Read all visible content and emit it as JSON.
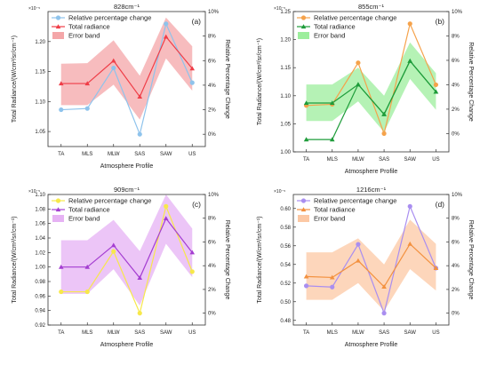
{
  "chart_data": [
    {
      "type": "line",
      "title": "828cm⁻¹",
      "panel_label": "(a)",
      "categories": [
        "TA",
        "MLS",
        "MLW",
        "SAS",
        "SAW",
        "US"
      ],
      "xlabel": "Atmosphere Profile",
      "ylabel": "Total Radiance/(W/cm²/sr/cm⁻¹)",
      "ylabel_right": "Relative Percentage Change",
      "y_exponent_label": "×10⁻⁵",
      "ylim": [
        1.025,
        1.25
      ],
      "yticks": [
        1.05,
        1.1,
        1.15,
        1.2
      ],
      "ytick_labels": [
        "1.05",
        "1.10",
        "1.15",
        "1.20"
      ],
      "y2lim": [
        -1,
        10
      ],
      "y2ticks": [
        0,
        2,
        4,
        6,
        8,
        10
      ],
      "y2tick_labels": [
        "0%",
        "2%",
        "4%",
        "6%",
        "8%",
        "10%"
      ],
      "colors": {
        "relative": "#8ec3ec",
        "total": "#ef3d47",
        "band": "#f4a6a8"
      },
      "series": [
        {
          "name": "Relative percentage change",
          "axis": "right",
          "values": [
            2.0,
            2.1,
            5.4,
            0.0,
            9.0,
            4.2
          ]
        },
        {
          "name": "Total radiance",
          "axis": "left",
          "values": [
            1.13,
            1.13,
            1.168,
            1.108,
            1.208,
            1.155
          ]
        }
      ],
      "band": {
        "name": "Error band",
        "lower": [
          1.094,
          1.094,
          1.128,
          1.07,
          1.172,
          1.118
        ],
        "upper": [
          1.163,
          1.164,
          1.202,
          1.143,
          1.24,
          1.192
        ]
      },
      "legend_position": "top-left",
      "grid": false
    },
    {
      "type": "line",
      "title": "855cm⁻¹",
      "panel_label": "(b)",
      "categories": [
        "TA",
        "MLS",
        "MLW",
        "SAS",
        "SAW",
        "US"
      ],
      "xlabel": "Atmosphere Profile",
      "ylabel": "Total Radiance/(W/cm²/sr/cm⁻¹)",
      "ylabel_right": "Relative Percentage Change",
      "y_exponent_label": "×10⁻⁵",
      "ylim": [
        1.0,
        1.25
      ],
      "yticks": [
        1.0,
        1.05,
        1.1,
        1.15,
        1.2,
        1.25
      ],
      "ytick_labels": [
        "1.00",
        "1.05",
        "1.10",
        "1.15",
        "1.20",
        "1.25"
      ],
      "y2lim": [
        -1.5,
        10
      ],
      "y2ticks": [
        0,
        2,
        4,
        6,
        8,
        10
      ],
      "y2tick_labels": [
        "0%",
        "2%",
        "4%",
        "6%",
        "8%",
        "10%"
      ],
      "colors": {
        "relative": "#f5a24b",
        "total": "#1e9c3a",
        "band": "#9cee9c"
      },
      "series": [
        {
          "name": "Relative percentage change",
          "axis": "right",
          "values": [
            2.3,
            2.4,
            5.8,
            0.0,
            9.0,
            4.0
          ]
        },
        {
          "name": "Total radiance",
          "axis": "left",
          "values": [
            1.087,
            1.087,
            1.12,
            1.067,
            1.162,
            1.107
          ]
        },
        {
          "name": "",
          "axis": "left",
          "values": [
            1.022,
            1.022,
            1.12,
            1.067,
            1.162,
            1.107
          ]
        }
      ],
      "band": {
        "name": "Error band",
        "lower": [
          1.055,
          1.055,
          1.09,
          1.035,
          1.13,
          1.075
        ],
        "upper": [
          1.12,
          1.12,
          1.15,
          1.1,
          1.195,
          1.14
        ]
      },
      "legend_position": "top-left",
      "grid": false
    },
    {
      "type": "line",
      "title": "909cm⁻¹",
      "panel_label": "(c)",
      "categories": [
        "TA",
        "MLS",
        "MLW",
        "SAS",
        "SAW",
        "US"
      ],
      "xlabel": "Atmosphere Profile",
      "ylabel": "Total Radiance/(W/cm²/sr/cm⁻¹)",
      "ylabel_right": "Relative Percentage Change",
      "y_exponent_label": "×10⁻⁵",
      "ylim": [
        0.92,
        1.1
      ],
      "yticks": [
        0.92,
        0.94,
        0.96,
        0.98,
        1.0,
        1.02,
        1.04,
        1.06,
        1.08,
        1.1
      ],
      "ytick_labels": [
        "0.92",
        "0.94",
        "0.96",
        "0.98",
        "1.00",
        "1.02",
        "1.04",
        "1.06",
        "1.08",
        "1.10"
      ],
      "y2lim": [
        -1,
        10
      ],
      "y2ticks": [
        0,
        2,
        4,
        6,
        8,
        10
      ],
      "y2tick_labels": [
        "0%",
        "2%",
        "4%",
        "6%",
        "8%",
        "10%"
      ],
      "colors": {
        "relative": "#f7e84a",
        "total": "#a43ed1",
        "band": "#e6b2f4"
      },
      "series": [
        {
          "name": "Relative percentage change",
          "axis": "right",
          "values": [
            1.8,
            1.8,
            5.2,
            0.0,
            9.0,
            3.5
          ]
        },
        {
          "name": "Total radiance",
          "axis": "left",
          "values": [
            1.0,
            1.0,
            1.03,
            0.985,
            1.067,
            1.02
          ]
        }
      ],
      "band": {
        "name": "Error band",
        "lower": [
          0.963,
          0.963,
          0.997,
          0.947,
          1.032,
          0.986
        ],
        "upper": [
          1.037,
          1.037,
          1.065,
          1.022,
          1.1,
          1.053
        ]
      },
      "legend_position": "top-left",
      "grid": false
    },
    {
      "type": "line",
      "title": "1216cm⁻¹",
      "panel_label": "(d)",
      "categories": [
        "TA",
        "MLS",
        "MLW",
        "SAS",
        "SAW",
        "US"
      ],
      "xlabel": "Atmosphere Profile",
      "ylabel": "Total Radiance/(W/cm²/sr/cm⁻¹)",
      "ylabel_right": "Relative Percentage Change",
      "y_exponent_label": "×10⁻⁵",
      "ylim": [
        0.475,
        0.615
      ],
      "yticks": [
        0.48,
        0.5,
        0.52,
        0.54,
        0.56,
        0.58,
        0.6
      ],
      "ytick_labels": [
        "0.48",
        "0.50",
        "0.52",
        "0.54",
        "0.56",
        "0.58",
        "0.60"
      ],
      "y2lim": [
        -1,
        10
      ],
      "y2ticks": [
        0,
        2,
        4,
        6,
        8,
        10
      ],
      "y2tick_labels": [
        "0%",
        "2%",
        "4%",
        "6%",
        "8%",
        "10%"
      ],
      "colors": {
        "relative": "#a98ef0",
        "total": "#f3913f",
        "band": "#fcc8a4"
      },
      "series": [
        {
          "name": "Relative percentage change",
          "axis": "right",
          "values": [
            2.3,
            2.2,
            5.8,
            0.0,
            9.0,
            3.8
          ]
        },
        {
          "name": "Total radiance",
          "axis": "left",
          "values": [
            0.527,
            0.526,
            0.544,
            0.516,
            0.562,
            0.536
          ]
        }
      ],
      "band": {
        "name": "Error band",
        "lower": [
          0.502,
          0.502,
          0.52,
          0.49,
          0.535,
          0.512
        ],
        "upper": [
          0.553,
          0.553,
          0.568,
          0.54,
          0.588,
          0.562
        ]
      },
      "legend_position": "top-left",
      "grid": false
    }
  ]
}
